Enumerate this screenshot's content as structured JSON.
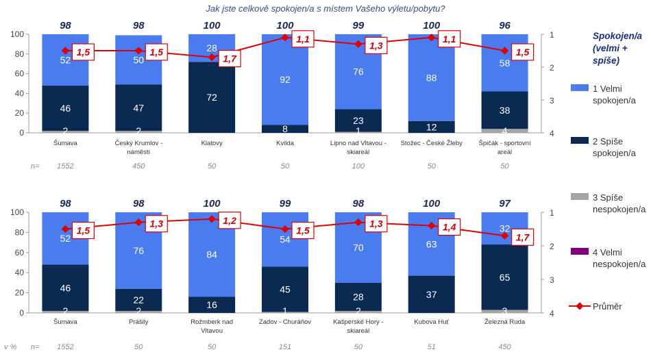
{
  "title": "Jak jste celkově spokojen/a s místem Vašeho výletu/pobytu?",
  "colors": {
    "velmi_spokojen": "#4a7cf0",
    "spise_spokojen": "#0b2a52",
    "spise_nespokojen": "#a6a6a6",
    "velmi_nespokojen": "#800080",
    "prumer": "#e00000"
  },
  "legend": {
    "title": [
      "Spokojen/a",
      "(velmi +",
      "spíše)"
    ],
    "items": [
      {
        "label": [
          "1 Velmi",
          "spokojen/a"
        ]
      },
      {
        "label": [
          "2 Spíše",
          "spokojen/a"
        ]
      },
      {
        "label": [
          "3 Spíše",
          "nespokojen/a"
        ]
      },
      {
        "label": [
          "4 Velmi",
          "nespokojen/a"
        ]
      },
      {
        "label": [
          "Průměr"
        ]
      }
    ]
  },
  "n_prefix": "n=",
  "unit_label": "v %",
  "left_axis_ticks": [
    "0",
    "20",
    "40",
    "60",
    "80",
    "100"
  ],
  "right_axis_ticks": [
    "1",
    "2",
    "3",
    "4"
  ],
  "chart_data": [
    {
      "type": "bar",
      "stacked": true,
      "ylim": [
        0,
        100
      ],
      "y2lim": [
        1,
        4
      ],
      "categories": [
        [
          "Šumava"
        ],
        [
          "Český Krumlov -",
          "náměstí"
        ],
        [
          "Klatovy"
        ],
        [
          "Kvilda"
        ],
        [
          "Lipno nad Vltavou -",
          "skiareál"
        ],
        [
          "Stožec - České Žleby"
        ],
        [
          "Špičák - sportovní",
          "areál"
        ]
      ],
      "n": [
        "1552",
        "450",
        "50",
        "50",
        "100",
        "50",
        "50"
      ],
      "top_labels": [
        "98",
        "98",
        "100",
        "100",
        "99",
        "100",
        "96"
      ],
      "series": [
        {
          "name": "1 Velmi spokojen/a",
          "values": [
            52,
            50,
            28,
            92,
            76,
            88,
            58
          ]
        },
        {
          "name": "2 Spíše spokojen/a",
          "values": [
            46,
            47,
            72,
            8,
            23,
            12,
            38
          ]
        },
        {
          "name": "3 Spíše nespokojen/a",
          "values": [
            2,
            2,
            0,
            0,
            1,
            0,
            4
          ]
        },
        {
          "name": "4 Velmi nespokojen/a",
          "values": [
            0,
            0,
            0,
            0,
            0,
            0,
            0
          ]
        }
      ],
      "segment_labels": [
        [
          "52",
          "50",
          "28",
          "92",
          "76",
          "88",
          "58"
        ],
        [
          "46",
          "47",
          "72",
          "8",
          "23",
          "12",
          "38"
        ],
        [
          "2",
          "2",
          "",
          "",
          "1",
          "",
          "4"
        ]
      ],
      "avg": {
        "name": "Průměr",
        "values": [
          1.5,
          1.5,
          1.7,
          1.1,
          1.3,
          1.1,
          1.5
        ],
        "labels": [
          "1,5",
          "1,5",
          "1,7",
          "1,1",
          "1,3",
          "1,1",
          "1,5"
        ]
      }
    },
    {
      "type": "bar",
      "stacked": true,
      "ylim": [
        0,
        100
      ],
      "y2lim": [
        1,
        4
      ],
      "categories": [
        [
          "Šumava"
        ],
        [
          "Prášily"
        ],
        [
          "Rožmberk nad",
          "Vltavou"
        ],
        [
          "Zadov - Churáňov"
        ],
        [
          "Kašperské Hory -",
          "skiareál"
        ],
        [
          "Kubova Huť"
        ],
        [
          "Železná Ruda"
        ]
      ],
      "n": [
        "1552",
        "50",
        "50",
        "151",
        "50",
        "51",
        "450"
      ],
      "top_labels": [
        "98",
        "98",
        "100",
        "99",
        "98",
        "100",
        "97"
      ],
      "series": [
        {
          "name": "1 Velmi spokojen/a",
          "values": [
            52,
            76,
            84,
            54,
            70,
            63,
            32
          ]
        },
        {
          "name": "2 Spíše spokojen/a",
          "values": [
            46,
            22,
            16,
            45,
            28,
            37,
            65
          ]
        },
        {
          "name": "3 Spíše nespokojen/a",
          "values": [
            2,
            2,
            0,
            1,
            2,
            0,
            3
          ]
        },
        {
          "name": "4 Velmi nespokojen/a",
          "values": [
            0,
            0,
            0,
            0,
            0,
            0,
            0
          ]
        }
      ],
      "segment_labels": [
        [
          "52",
          "76",
          "84",
          "54",
          "70",
          "63",
          "32"
        ],
        [
          "46",
          "22",
          "16",
          "45",
          "28",
          "37",
          "65"
        ],
        [
          "2",
          "2",
          "",
          "1",
          "2",
          "",
          "3"
        ]
      ],
      "avg": {
        "name": "Průměr",
        "values": [
          1.5,
          1.3,
          1.2,
          1.5,
          1.3,
          1.4,
          1.7
        ],
        "labels": [
          "1,5",
          "1,3",
          "1,2",
          "1,5",
          "1,3",
          "1,4",
          "1,7"
        ]
      }
    }
  ]
}
